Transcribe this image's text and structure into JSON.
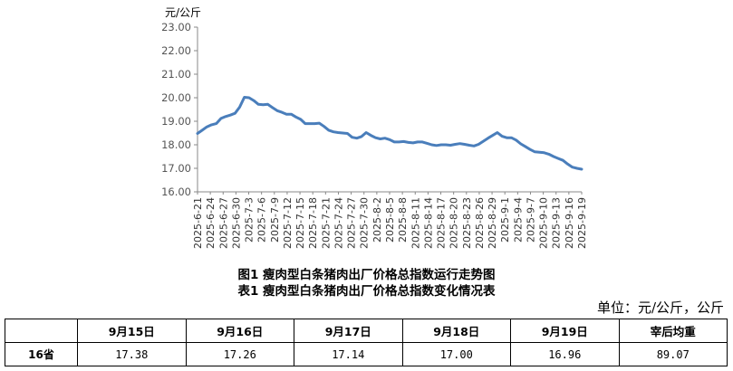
{
  "chart_data": {
    "type": "line",
    "ylabel": "元/公斤",
    "ylim": [
      16.0,
      23.0
    ],
    "yticks": [
      "16.00",
      "17.00",
      "18.00",
      "19.00",
      "20.00",
      "21.00",
      "22.00",
      "23.00"
    ],
    "grid": false,
    "legend": "none",
    "line_color": "#4a7ebb",
    "x_tick_labels": [
      "2025-6-21",
      "2025-6-24",
      "2025-6-27",
      "2025-6-30",
      "2025-7-3",
      "2025-7-6",
      "2025-7-9",
      "2025-7-12",
      "2025-7-15",
      "2025-7-18",
      "2025-7-21",
      "2025-7-24",
      "2025-7-27",
      "2025-7-30",
      "2025-8-2",
      "2025-8-5",
      "2025-8-8",
      "2025-8-11",
      "2025-8-14",
      "2025-8-17",
      "2025-8-20",
      "2025-8-23",
      "2025-8-26",
      "2025-8-29",
      "2025-9-1",
      "2025-9-4",
      "2025-9-7",
      "2025-9-10",
      "2025-9-13",
      "2025-9-16",
      "2025-9-19"
    ],
    "series": [
      {
        "values": [
          18.48,
          18.62,
          18.76,
          18.85,
          18.9,
          19.12,
          19.2,
          19.26,
          19.34,
          19.6,
          20.02,
          20.0,
          19.88,
          19.72,
          19.7,
          19.72,
          19.58,
          19.45,
          19.38,
          19.3,
          19.3,
          19.18,
          19.08,
          18.9,
          18.9,
          18.9,
          18.92,
          18.78,
          18.62,
          18.55,
          18.52,
          18.5,
          18.48,
          18.32,
          18.28,
          18.35,
          18.52,
          18.4,
          18.3,
          18.25,
          18.28,
          18.22,
          18.12,
          18.12,
          18.14,
          18.1,
          18.08,
          18.12,
          18.12,
          18.06,
          18.0,
          17.97,
          18.0,
          18.0,
          17.98,
          18.02,
          18.05,
          18.02,
          17.98,
          17.95,
          18.02,
          18.15,
          18.28,
          18.4,
          18.52,
          18.36,
          18.3,
          18.3,
          18.2,
          18.04,
          17.92,
          17.8,
          17.7,
          17.68,
          17.66,
          17.6,
          17.5,
          17.42,
          17.34,
          17.18,
          17.05,
          17.0,
          16.96
        ]
      }
    ]
  },
  "captions": {
    "figure": "图1  瘦肉型白条猪肉出厂价格总指数运行走势图",
    "table": "表1  瘦肉型白条猪肉出厂价格总指数变化情况表"
  },
  "unit_note": "单位：元/公斤，公斤",
  "table": {
    "headers": [
      "",
      "9月15日",
      "9月16日",
      "9月17日",
      "9月18日",
      "9月19日",
      "宰后均重"
    ],
    "row": {
      "label": "16省",
      "values": [
        "17.38",
        "17.26",
        "17.14",
        "17.00",
        "16.96",
        "89.07"
      ]
    }
  }
}
